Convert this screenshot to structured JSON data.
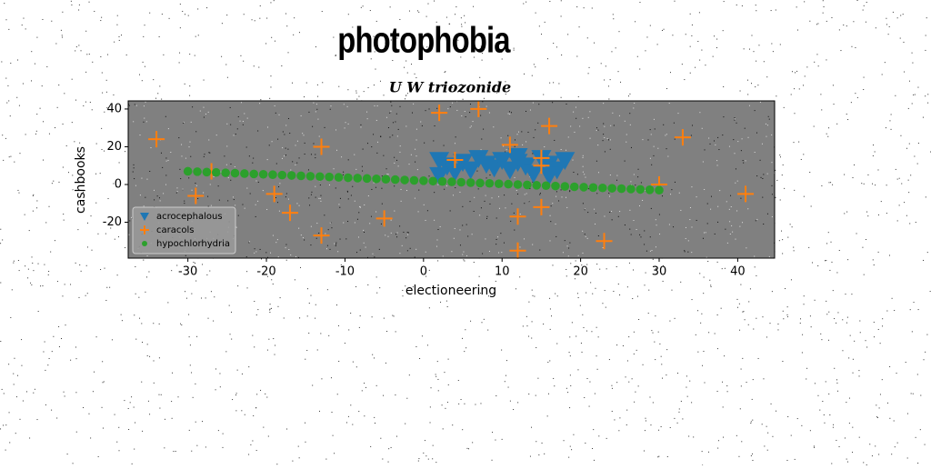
{
  "page_title": "photophobia",
  "chart_data": {
    "type": "scatter",
    "title": "U W triozonide",
    "x_label": "electioneering",
    "y_label": "cashbooks",
    "xlim": [
      -37.6,
      44.7
    ],
    "ylim": [
      -39,
      44.3
    ],
    "xticks": [
      -30,
      -20,
      -10,
      0,
      10,
      20,
      30,
      40
    ],
    "yticks": [
      -20,
      0,
      20,
      40
    ],
    "background": "#808080",
    "legend": "lower left",
    "series": [
      {
        "name": "acrocephalous",
        "color": "#1f77b4",
        "marker": "triangle-down",
        "x": [
          2,
          3,
          2,
          5,
          6,
          7,
          8,
          9,
          10,
          11,
          12,
          13,
          14,
          15,
          16,
          17,
          18,
          4,
          12,
          16
        ],
        "y": [
          13,
          10,
          5,
          12,
          8,
          14,
          11,
          9,
          13,
          8,
          12,
          10,
          6,
          14,
          11,
          8,
          13,
          7,
          15,
          5
        ]
      },
      {
        "name": "caracols",
        "color": "#ff7f0e",
        "marker": "plus",
        "x": [
          -34,
          -27,
          -29,
          -13,
          -19,
          -17,
          -13,
          -5,
          2,
          7,
          4,
          11,
          12,
          12,
          15,
          15,
          15,
          16,
          23,
          30,
          33,
          41
        ],
        "y": [
          24,
          7,
          -6,
          20,
          -5,
          -15,
          -27,
          -18,
          38,
          40,
          13,
          21,
          -17,
          -35,
          -12,
          14,
          10,
          31,
          -30,
          0,
          25,
          -5
        ]
      },
      {
        "name": "hypochlorhydria",
        "color": "#2ca02c",
        "marker": "circle",
        "x": [
          -30,
          -28.8,
          -27.6,
          -26.4,
          -25.2,
          -24,
          -22.8,
          -21.6,
          -20.4,
          -19.2,
          -18,
          -16.8,
          -15.6,
          -14.4,
          -13.2,
          -12,
          -10.8,
          -9.6,
          -8.4,
          -7.2,
          -6,
          -4.8,
          -3.6,
          -2.4,
          -1.2,
          0,
          1.2,
          2.4,
          3.6,
          4.8,
          6,
          7.2,
          8.4,
          9.6,
          10.8,
          12,
          13.2,
          14.4,
          15.6,
          16.8,
          18,
          19.2,
          20.4,
          21.6,
          22.8,
          24,
          25.2,
          26.4,
          27.6,
          28.8,
          30
        ],
        "y": [
          7,
          6.8,
          6.6,
          6.4,
          6.2,
          6,
          5.8,
          5.6,
          5.4,
          5.2,
          5,
          4.8,
          4.6,
          4.4,
          4.2,
          4,
          3.8,
          3.6,
          3.4,
          3.2,
          3,
          2.8,
          2.6,
          2.4,
          2.2,
          2,
          1.8,
          1.6,
          1.4,
          1.2,
          1,
          0.8,
          0.6,
          0.4,
          0.2,
          0,
          -0.2,
          -0.4,
          -0.6,
          -0.8,
          -1,
          -1.2,
          -1.4,
          -1.6,
          -1.8,
          -2,
          -2.2,
          -2.4,
          -2.6,
          -2.8,
          -3
        ]
      }
    ]
  }
}
